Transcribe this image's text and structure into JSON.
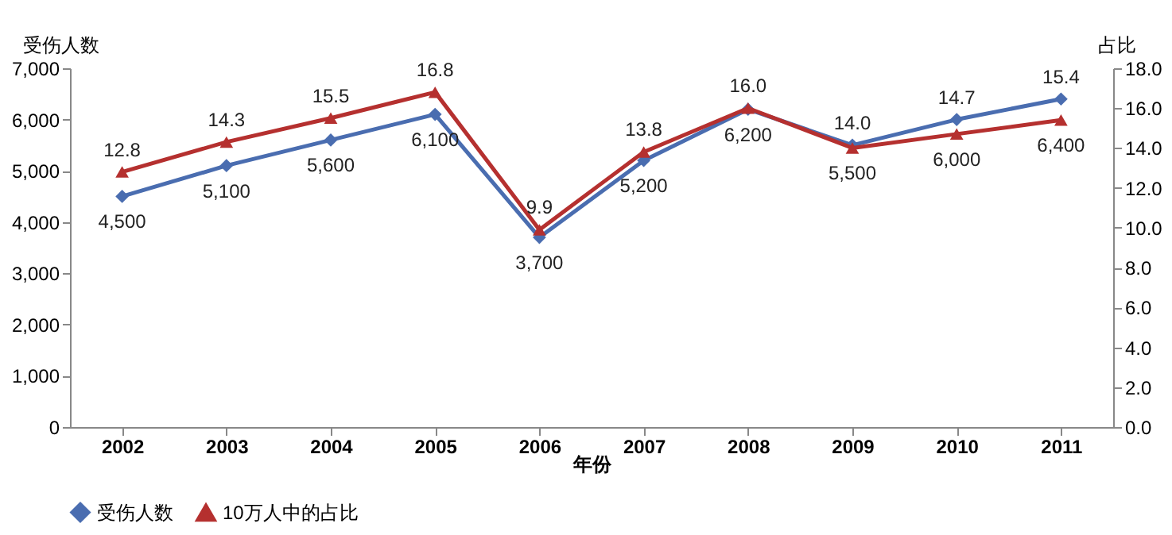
{
  "chart_data": {
    "type": "line",
    "xlabel": "年份",
    "ylabel": "受伤人数",
    "y2label": "占比",
    "categories": [
      "2002",
      "2003",
      "2004",
      "2005",
      "2006",
      "2007",
      "2008",
      "2009",
      "2010",
      "2011"
    ],
    "series": [
      {
        "name": "受伤人数",
        "color": "#4a6db0",
        "marker": "diamond",
        "values": [
          4500,
          5100,
          5600,
          6100,
          3700,
          5200,
          6200,
          5500,
          6000,
          6400
        ],
        "value_labels": [
          "4,500",
          "5,100",
          "5,600",
          "6,100",
          "3,700",
          "5,200",
          "6,200",
          "5,500",
          "6,000",
          "6,400"
        ]
      },
      {
        "name": "10万人中的占比",
        "color": "#b5302f",
        "marker": "triangle",
        "axis": "y2",
        "values": [
          12.8,
          14.3,
          15.5,
          16.8,
          9.9,
          13.8,
          16.0,
          14.0,
          14.7,
          15.4
        ],
        "value_labels": [
          "12.8",
          "14.3",
          "15.5",
          "16.8",
          "9.9",
          "13.8",
          "16.0",
          "14.0",
          "14.7",
          "15.4"
        ]
      }
    ],
    "ylim": [
      0,
      7000
    ],
    "yticks": [
      0,
      {
        "value": 1000,
        "label": "1,000"
      },
      {
        "value": 2000,
        "label": "2,000"
      },
      {
        "value": 3000,
        "label": "3,000"
      },
      {
        "value": 4000,
        "label": "4,000"
      },
      {
        "value": 5000,
        "label": "5,000"
      },
      {
        "value": 6000,
        "label": "6,000"
      },
      {
        "value": 7000,
        "label": "7,000"
      }
    ],
    "y2lim": [
      0,
      18
    ],
    "y2ticks": [
      {
        "value": 0,
        "label": "0.0"
      },
      {
        "value": 2,
        "label": "2.0"
      },
      {
        "value": 4,
        "label": "4.0"
      },
      {
        "value": 6,
        "label": "6.0"
      },
      {
        "value": 8,
        "label": "8.0"
      },
      {
        "value": 10,
        "label": "10.0"
      },
      {
        "value": 12,
        "label": "12.0"
      },
      {
        "value": 14,
        "label": "14.0"
      },
      {
        "value": 16,
        "label": "16.0"
      },
      {
        "value": 18,
        "label": "18.0"
      }
    ],
    "grid": false,
    "legend": "bottom",
    "line_style": "solid"
  }
}
